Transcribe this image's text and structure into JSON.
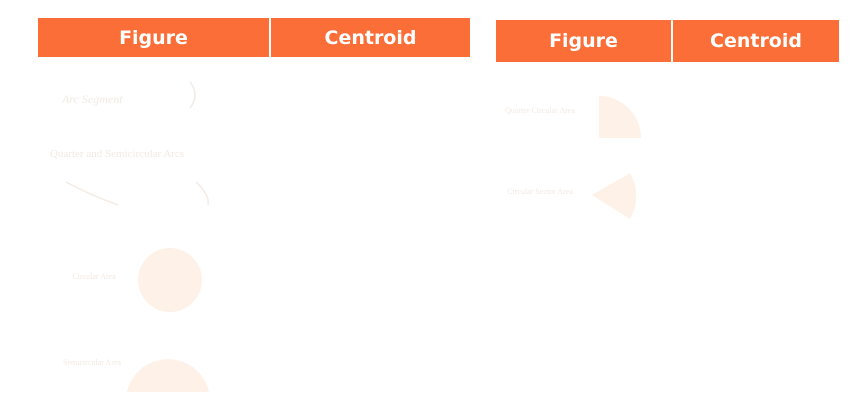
{
  "tables": [
    {
      "header": [
        "Figure",
        "Centroid"
      ]
    },
    {
      "header": [
        "Figure",
        "Centroid"
      ]
    }
  ],
  "left": {
    "arc_segment_label": "Arc Segment",
    "quarter_semicircular_label": "Quarter and Semicircular Arcs",
    "circular_area_label": "Circular Area",
    "semicircular_area_label": "Semicircular Area"
  },
  "right": {
    "quarter_circular_area_label": "Quarter Circular Area",
    "circular_sector_area_label": "Circular Sector Area"
  },
  "colors": {
    "header_bg": "#fb6e37",
    "header_text": "#ffffff",
    "shape_fill": "#fdf1e8"
  }
}
